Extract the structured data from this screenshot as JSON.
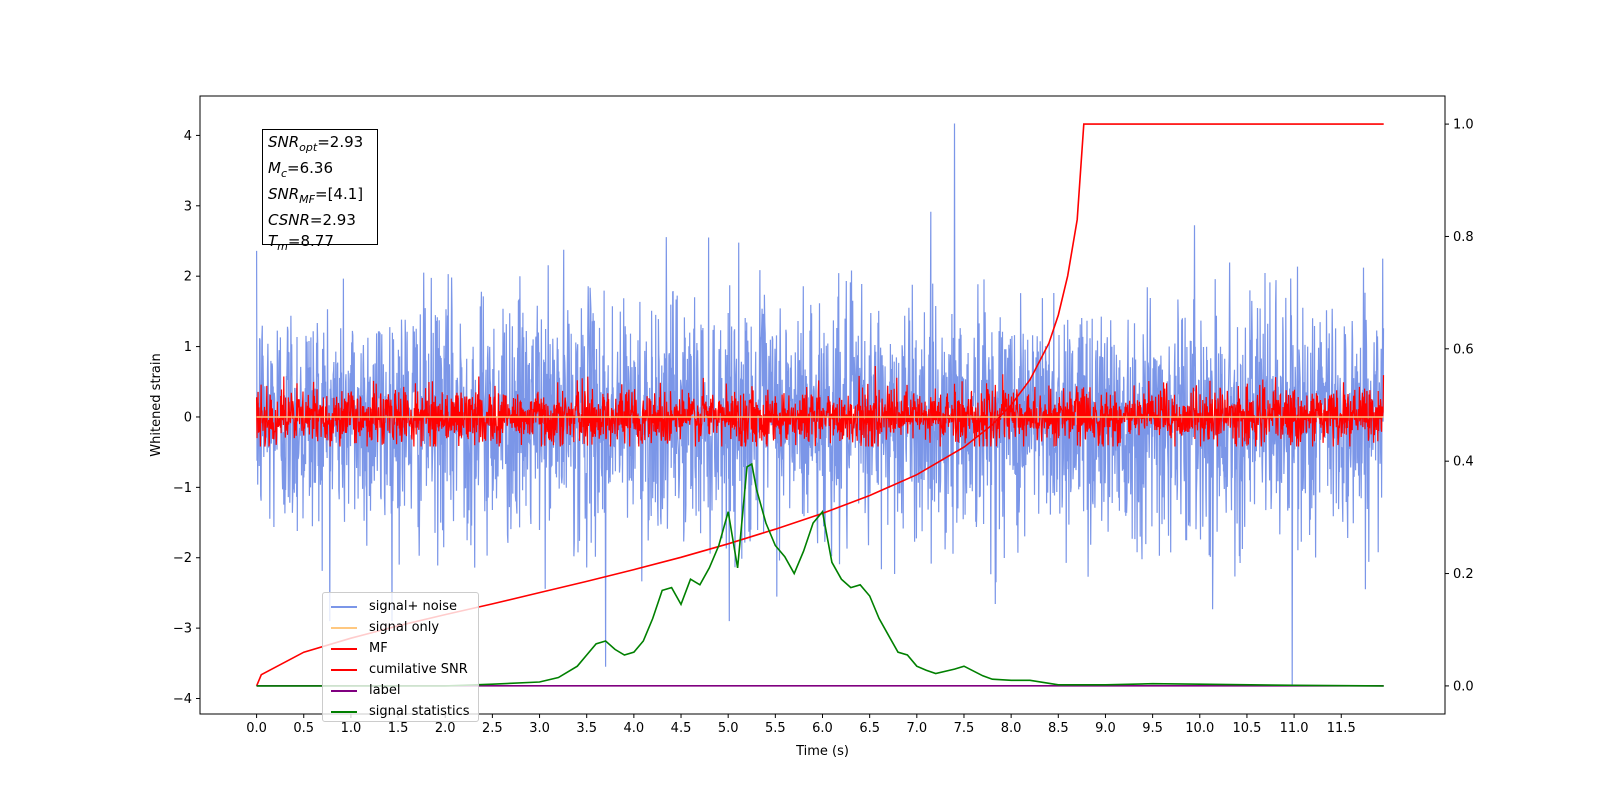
{
  "chart_data": {
    "type": "line",
    "xlabel": "Time (s)",
    "ylabel": "Whitened strain",
    "xlim": [
      -0.6,
      12.6
    ],
    "ylim": [
      -4.22,
      4.56
    ],
    "ylim_right": [
      -0.05,
      1.05
    ],
    "x_ticks": [
      0.0,
      0.5,
      1.0,
      1.5,
      2.0,
      2.5,
      3.0,
      3.5,
      4.0,
      4.5,
      5.0,
      5.5,
      6.0,
      6.5,
      7.0,
      7.5,
      8.0,
      8.5,
      9.0,
      9.5,
      10.0,
      10.5,
      11.0,
      11.5
    ],
    "x_tick_labels": [
      "0.0",
      "0.5",
      "1.0",
      "1.5",
      "2.0",
      "2.5",
      "3.0",
      "3.5",
      "4.0",
      "4.5",
      "5.0",
      "5.5",
      "6.0",
      "6.5",
      "7.0",
      "7.5",
      "8.0",
      "8.5",
      "9.0",
      "9.5",
      "10.0",
      "10.5",
      "11.0",
      "11.5"
    ],
    "y_ticks_left": [
      -4,
      -3,
      -2,
      -1,
      0,
      1,
      2,
      3,
      4
    ],
    "y_tick_labels_left": [
      "−4",
      "−3",
      "−2",
      "−1",
      "0",
      "1",
      "2",
      "3",
      "4"
    ],
    "y_ticks_right": [
      0.0,
      0.2,
      0.4,
      0.6,
      0.8,
      1.0
    ],
    "y_tick_labels_right": [
      "0.0",
      "0.2",
      "0.4",
      "0.6",
      "0.8",
      "1.0"
    ],
    "annotation": {
      "snr_opt": "=2.93",
      "mc": "=6.36",
      "snr_mf": "=[4.1]",
      "csnr": "=2.93",
      "tm": "=8.77"
    },
    "legend_placement": "lower-left",
    "series": [
      {
        "name": "signal+ noise",
        "color": "#7b96e8",
        "axis": "left",
        "description": "noise, amplitude roughly -2 to 2 with spikes to 4.17 at 7.4 s, -3.8 at 11.0 s"
      },
      {
        "name": "signal only",
        "color": "#ffc880",
        "axis": "left",
        "x": [
          0,
          11.95
        ],
        "y": [
          0,
          0
        ]
      },
      {
        "name": "MF",
        "color": "#ff0000",
        "axis": "left",
        "description": "noise, amplitude roughly -0.4 to 0.4 with peaks to 1.0"
      },
      {
        "name": "cumilative SNR",
        "color": "#ff0000",
        "axis": "right",
        "x": [
          0.0,
          0.05,
          0.5,
          1.0,
          1.5,
          2.0,
          2.5,
          3.0,
          3.5,
          4.0,
          4.5,
          5.0,
          5.5,
          6.0,
          6.5,
          7.0,
          7.5,
          7.8,
          8.0,
          8.2,
          8.4,
          8.5,
          8.6,
          8.7,
          8.77,
          9.0,
          10.0,
          11.0,
          11.95
        ],
        "y": [
          0.0,
          0.02,
          0.06,
          0.085,
          0.107,
          0.127,
          0.146,
          0.166,
          0.186,
          0.207,
          0.229,
          0.253,
          0.279,
          0.307,
          0.339,
          0.376,
          0.425,
          0.465,
          0.5,
          0.545,
          0.61,
          0.66,
          0.73,
          0.83,
          1.0,
          1.0,
          1.0,
          1.0,
          1.0
        ]
      },
      {
        "name": "label",
        "color": "#800080",
        "axis": "right",
        "x": [
          0,
          11.95
        ],
        "y": [
          0,
          0
        ]
      },
      {
        "name": "signal statistics",
        "color": "#008000",
        "axis": "right",
        "x": [
          0.0,
          2.0,
          2.5,
          3.0,
          3.2,
          3.4,
          3.5,
          3.6,
          3.7,
          3.8,
          3.9,
          4.0,
          4.1,
          4.2,
          4.3,
          4.4,
          4.5,
          4.6,
          4.7,
          4.8,
          4.9,
          5.0,
          5.1,
          5.2,
          5.25,
          5.3,
          5.4,
          5.5,
          5.6,
          5.7,
          5.8,
          5.9,
          6.0,
          6.1,
          6.2,
          6.3,
          6.4,
          6.5,
          6.6,
          6.7,
          6.8,
          6.9,
          7.0,
          7.1,
          7.2,
          7.4,
          7.5,
          7.7,
          7.8,
          8.0,
          8.2,
          8.5,
          9.0,
          9.5,
          10.0,
          11.0,
          11.95
        ],
        "y": [
          0.0,
          0.0,
          0.003,
          0.007,
          0.015,
          0.035,
          0.055,
          0.075,
          0.08,
          0.065,
          0.055,
          0.06,
          0.08,
          0.12,
          0.17,
          0.175,
          0.145,
          0.19,
          0.18,
          0.21,
          0.25,
          0.31,
          0.21,
          0.39,
          0.395,
          0.35,
          0.29,
          0.25,
          0.23,
          0.2,
          0.24,
          0.29,
          0.31,
          0.22,
          0.19,
          0.175,
          0.18,
          0.16,
          0.12,
          0.09,
          0.06,
          0.055,
          0.035,
          0.028,
          0.022,
          0.03,
          0.035,
          0.018,
          0.012,
          0.01,
          0.01,
          0.002,
          0.002,
          0.004,
          0.003,
          0.001,
          0.0
        ]
      }
    ]
  }
}
